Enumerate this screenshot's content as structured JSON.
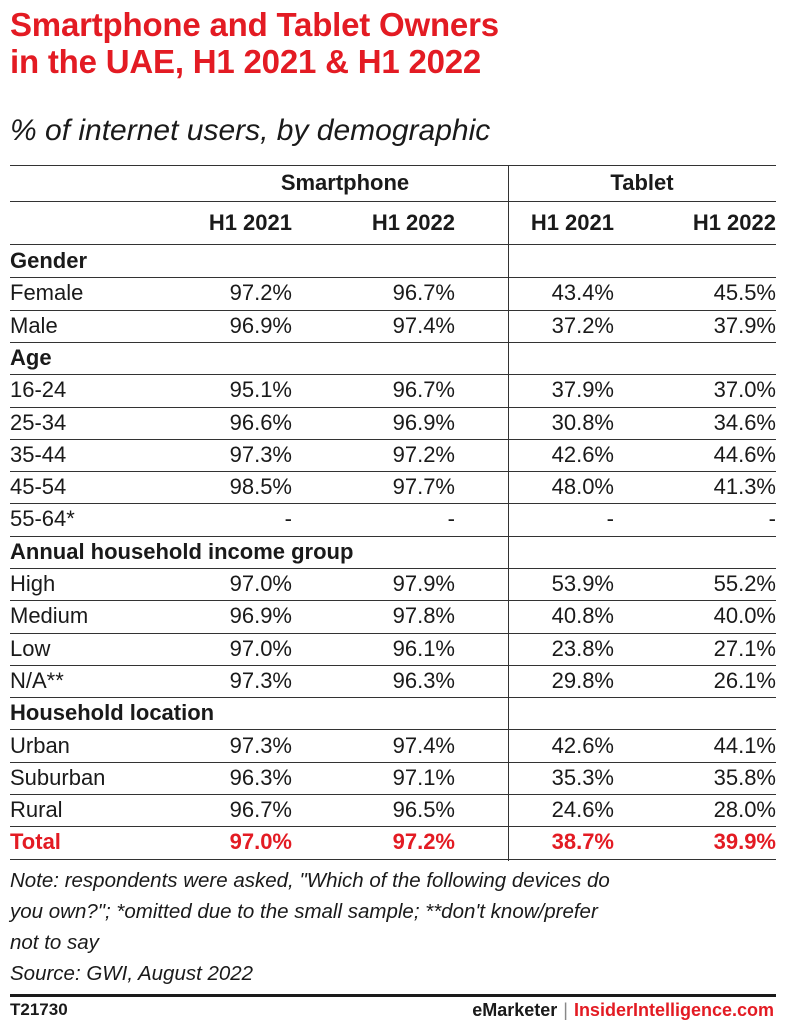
{
  "header": {
    "title_line1": "Smartphone and Tablet Owners",
    "title_line2": "in the UAE, H1 2021 & H1 2022",
    "subtitle": "% of internet users, by demographic"
  },
  "chart_data": {
    "type": "table",
    "column_groups": [
      "Smartphone",
      "Tablet"
    ],
    "columns": [
      "H1 2021",
      "H1 2022",
      "H1 2021",
      "H1 2022"
    ],
    "groups": [
      {
        "label": "Gender",
        "rows": [
          {
            "label": "Female",
            "values": [
              "97.2%",
              "96.7%",
              "43.4%",
              "45.5%"
            ]
          },
          {
            "label": "Male",
            "values": [
              "96.9%",
              "97.4%",
              "37.2%",
              "37.9%"
            ]
          }
        ]
      },
      {
        "label": "Age",
        "rows": [
          {
            "label": "16-24",
            "values": [
              "95.1%",
              "96.7%",
              "37.9%",
              "37.0%"
            ]
          },
          {
            "label": "25-34",
            "values": [
              "96.6%",
              "96.9%",
              "30.8%",
              "34.6%"
            ]
          },
          {
            "label": "35-44",
            "values": [
              "97.3%",
              "97.2%",
              "42.6%",
              "44.6%"
            ]
          },
          {
            "label": "45-54",
            "values": [
              "98.5%",
              "97.7%",
              "48.0%",
              "41.3%"
            ]
          },
          {
            "label": "55-64*",
            "values": [
              "-",
              "-",
              "-",
              "-"
            ]
          }
        ]
      },
      {
        "label": "Annual household income group",
        "rows": [
          {
            "label": "High",
            "values": [
              "97.0%",
              "97.9%",
              "53.9%",
              "55.2%"
            ]
          },
          {
            "label": "Medium",
            "values": [
              "96.9%",
              "97.8%",
              "40.8%",
              "40.0%"
            ]
          },
          {
            "label": "Low",
            "values": [
              "97.0%",
              "96.1%",
              "23.8%",
              "27.1%"
            ]
          },
          {
            "label": "N/A**",
            "values": [
              "97.3%",
              "96.3%",
              "29.8%",
              "26.1%"
            ]
          }
        ]
      },
      {
        "label": "Household location",
        "rows": [
          {
            "label": "Urban",
            "values": [
              "97.3%",
              "97.4%",
              "42.6%",
              "44.1%"
            ]
          },
          {
            "label": "Suburban",
            "values": [
              "96.3%",
              "97.1%",
              "35.3%",
              "35.8%"
            ]
          },
          {
            "label": "Rural",
            "values": [
              "96.7%",
              "96.5%",
              "24.6%",
              "28.0%"
            ]
          }
        ]
      }
    ],
    "total": {
      "label": "Total",
      "values": [
        "97.0%",
        "97.2%",
        "38.7%",
        "39.9%"
      ]
    }
  },
  "notes": {
    "line1": "Note: respondents were asked, \"Which of the following devices do",
    "line2": "you own?\"; *omitted due to the small sample; **don't know/prefer",
    "line3": "not to say",
    "source": "Source: GWI, August 2022"
  },
  "footer": {
    "id": "T21730",
    "brand": "eMarketer",
    "separator": "|",
    "brand2": "InsiderIntelligence.com"
  },
  "colors": {
    "accent": "#e31b23",
    "text": "#1a1a1a"
  }
}
